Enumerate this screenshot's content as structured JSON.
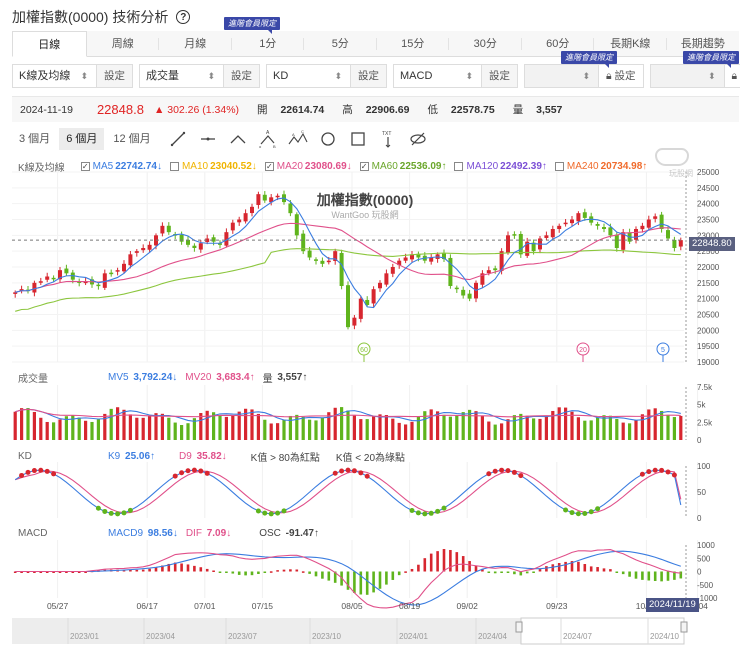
{
  "header": {
    "title": "加權指數(0000) 技術分析",
    "help_icon": "?"
  },
  "tabs": [
    {
      "label": "日線",
      "active": true
    },
    {
      "label": "周線"
    },
    {
      "label": "月線"
    },
    {
      "label": "1分",
      "badge": "進階會員限定"
    },
    {
      "label": "5分"
    },
    {
      "label": "15分"
    },
    {
      "label": "30分"
    },
    {
      "label": "60分"
    },
    {
      "label": "長期K線",
      "badge": "進階會員限定"
    },
    {
      "label": "長期趨勢",
      "badge": "進階會員限定"
    }
  ],
  "badge_text": "進階會員限定",
  "selects": [
    {
      "value": "K線及均線",
      "button": "設定"
    },
    {
      "value": "成交量",
      "button": "設定"
    },
    {
      "value": "KD",
      "button": "設定"
    },
    {
      "value": "MACD",
      "button": "設定"
    },
    {
      "value": "",
      "button": "設定",
      "locked": true,
      "badge": "進階會員限定"
    },
    {
      "value": "",
      "button": "設定",
      "locked": true,
      "badge": "進階會員限定"
    }
  ],
  "quote": {
    "date": "2024-11-19",
    "price": "22848.8",
    "change": "▲ 302.26 (1.34%)",
    "open_label": "開",
    "open": "22614.74",
    "high_label": "高",
    "high": "22906.69",
    "low_label": "低",
    "low": "22578.75",
    "vol_label": "量",
    "vol": "3,557"
  },
  "ranges": [
    {
      "label": "3 個月"
    },
    {
      "label": "6 個月",
      "active": true
    },
    {
      "label": "12 個月"
    }
  ],
  "drawing_tools": [
    "line-tool-icon",
    "horizontal-line-tool-icon",
    "angle-tool-icon",
    "abc-pattern-tool-icon",
    "abcd-pattern-tool-icon",
    "circle-tool-icon",
    "rectangle-tool-icon",
    "text-tool-icon",
    "hide-drawings-icon"
  ],
  "price_legend": {
    "label": "K線及均線",
    "items": [
      {
        "name": "MA5",
        "value": "22742.74",
        "arrow": "↓",
        "checked": true,
        "color": "#3b7de0"
      },
      {
        "name": "MA10",
        "value": "23040.52",
        "arrow": "↓",
        "checked": false,
        "color": "#f0b400"
      },
      {
        "name": "MA20",
        "value": "23080.69",
        "arrow": "↓",
        "checked": true,
        "color": "#e0508a"
      },
      {
        "name": "MA60",
        "value": "22536.09",
        "arrow": "↑",
        "checked": true,
        "color": "#8cc63e"
      },
      {
        "name": "MA120",
        "value": "22492.39",
        "arrow": "↑",
        "checked": false,
        "color": "#7b4fd6"
      },
      {
        "name": "MA240",
        "value": "20734.98",
        "arrow": "↑",
        "checked": false,
        "color": "#f06a2a"
      }
    ]
  },
  "chart_title": "加權指數(0000)",
  "watermark": "WantGoo 玩股網",
  "watermark_logo": "玩股網",
  "price_axis": [
    "25000",
    "24500",
    "24000",
    "23500",
    "23000",
    "22500",
    "22000",
    "21500",
    "21000",
    "20500",
    "20000",
    "19500",
    "19000"
  ],
  "current_price_tag": "22848.80",
  "ma_markers": [
    {
      "label": "60",
      "color": "#8cc63e"
    },
    {
      "label": "20",
      "color": "#e0508a"
    },
    {
      "label": "5",
      "color": "#3b7de0"
    }
  ],
  "volume_legend": {
    "label": "成交量",
    "items": [
      {
        "name": "MV5",
        "value": "3,792.24",
        "arrow": "↓",
        "color": "#3b7de0"
      },
      {
        "name": "MV20",
        "value": "3,683.4",
        "arrow": "↑",
        "color": "#e0508a"
      },
      {
        "name": "量",
        "value": "3,557",
        "arrow": "↑",
        "color": "#333"
      }
    ]
  },
  "volume_axis": [
    "7.5k",
    "5k",
    "2.5k",
    "0"
  ],
  "kd_legend": {
    "label": "KD",
    "items": [
      {
        "name": "K9",
        "value": "25.06",
        "arrow": "↑",
        "color": "#3b7de0"
      },
      {
        "name": "D9",
        "value": "35.82",
        "arrow": "↓",
        "color": "#e0508a"
      }
    ],
    "note1": "K值 > 80為紅點",
    "note2": "K值 < 20為綠點"
  },
  "kd_axis": [
    "100",
    "50",
    "0"
  ],
  "macd_legend": {
    "label": "MACD",
    "items": [
      {
        "name": "MACD9",
        "value": "98.56",
        "arrow": "↓",
        "color": "#3b7de0"
      },
      {
        "name": "DIF",
        "value": "7.09",
        "arrow": "↓",
        "color": "#e0508a"
      },
      {
        "name": "OSC",
        "value": "-91.47",
        "arrow": "↑",
        "color": "#333"
      }
    ]
  },
  "macd_axis": [
    "1000",
    "500",
    "0",
    "-500",
    "-1000"
  ],
  "date_axis": [
    "05/27",
    "06/17",
    "07/01",
    "07/15",
    "08/05",
    "08/19",
    "09/02",
    "09/23",
    "10/14",
    "11/04"
  ],
  "current_date_tag": "2024/11/19",
  "navigator_labels": [
    "2023/01",
    "2023/04",
    "2023/07",
    "2023/10",
    "2024/01",
    "2024/04",
    "2024/07",
    "2024/10"
  ],
  "colors": {
    "up": "#d7262f",
    "down": "#5fb41c",
    "ma5": "#3b7de0",
    "ma20": "#e0508a",
    "ma60": "#8cc63e",
    "badge": "#3a48a8"
  },
  "chart_data": {
    "type": "candlestick",
    "title": "加權指數(0000)",
    "y_range": [
      19000,
      25000
    ],
    "dates_visible": [
      "05/27",
      "06/17",
      "07/01",
      "07/15",
      "08/05",
      "08/19",
      "09/02",
      "09/23",
      "10/14",
      "11/04",
      "11/19"
    ],
    "close_approx": [
      21200,
      21300,
      21250,
      21500,
      21550,
      21700,
      21650,
      21900,
      21800,
      21600,
      21500,
      21550,
      21450,
      21400,
      21800,
      21800,
      21900,
      22100,
      22400,
      22500,
      22600,
      22700,
      23000,
      23300,
      23100,
      23000,
      22800,
      22700,
      22600,
      22750,
      22900,
      22800,
      22700,
      23100,
      23400,
      23500,
      23700,
      23900,
      24300,
      24100,
      24200,
      24250,
      24050,
      23700,
      23000,
      22500,
      22300,
      22200,
      22100,
      22200,
      22500,
      21400,
      20100,
      20400,
      21000,
      20800,
      21300,
      21500,
      21800,
      22000,
      22200,
      22300,
      22400,
      22300,
      22200,
      22300,
      22400,
      22250,
      21400,
      21300,
      21100,
      21000,
      21500,
      21800,
      21900,
      21900,
      22500,
      23000,
      23000,
      22400,
      22800,
      22500,
      22900,
      23000,
      23200,
      23300,
      23400,
      23500,
      23700,
      23550,
      23400,
      23300,
      23200,
      23000,
      22600,
      23100,
      22800,
      23200,
      23300,
      23500,
      23600,
      23200,
      22900,
      22600,
      22848.8
    ],
    "ma_latest": {
      "MA5": 22742.74,
      "MA10": 23040.52,
      "MA20": 23080.69,
      "MA60": 22536.09,
      "MA120": 22492.39,
      "MA240": 20734.98
    },
    "volume": {
      "MV5": 3792.24,
      "MV20": 3683.4,
      "latest": 3557,
      "y_range": [
        0,
        7500
      ]
    },
    "kd": {
      "K9": 25.06,
      "D9": 35.82,
      "y_range": [
        0,
        100
      ]
    },
    "macd": {
      "MACD9": 98.56,
      "DIF": 7.09,
      "OSC": -91.47,
      "y_range": [
        -1000,
        1000
      ]
    }
  }
}
